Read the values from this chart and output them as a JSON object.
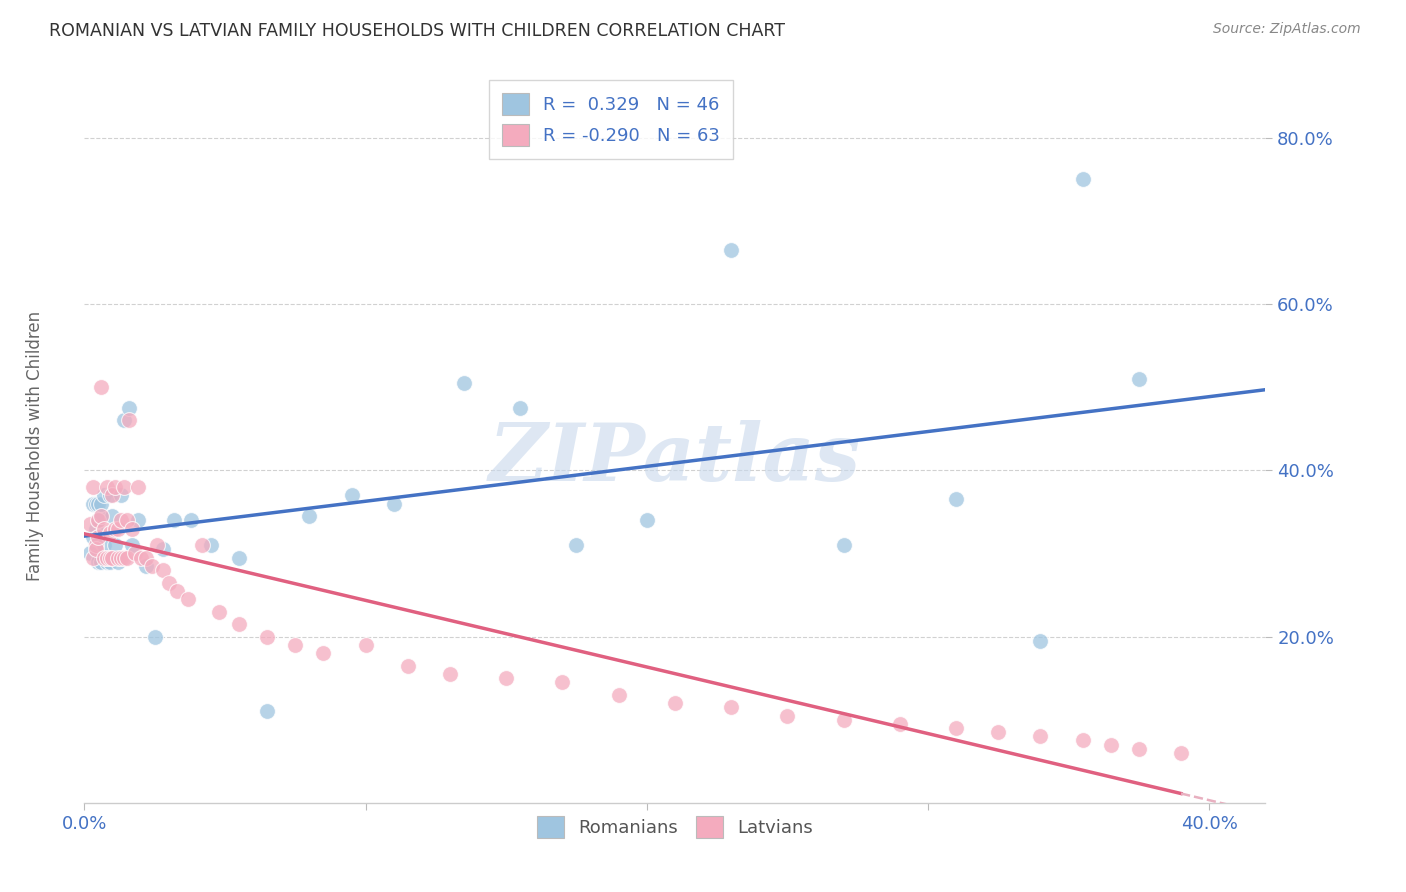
{
  "title": "ROMANIAN VS LATVIAN FAMILY HOUSEHOLDS WITH CHILDREN CORRELATION CHART",
  "source": "Source: ZipAtlas.com",
  "ylabel": "Family Households with Children",
  "xlim": [
    0.0,
    0.42
  ],
  "ylim": [
    0.0,
    0.88
  ],
  "yticks": [
    0.2,
    0.4,
    0.6,
    0.8
  ],
  "ytick_labels": [
    "20.0%",
    "40.0%",
    "60.0%",
    "80.0%"
  ],
  "xticks": [
    0.0,
    0.1,
    0.2,
    0.3,
    0.4
  ],
  "xtick_labels_show": [
    "0.0%",
    "",
    "",
    "",
    "40.0%"
  ],
  "romanian_R": 0.329,
  "romanian_N": 46,
  "latvian_R": -0.29,
  "latvian_N": 63,
  "romanian_color": "#9FC5E0",
  "latvian_color": "#F4ABBE",
  "trendline_romanian_color": "#4472C4",
  "trendline_latvian_solid_color": "#E06080",
  "trendline_latvian_dashed_color": "#E8B0C0",
  "watermark": "ZIPatlas",
  "watermark_color": "#C8D8EC",
  "background_color": "#FFFFFF",
  "romanian_x": [
    0.002,
    0.003,
    0.003,
    0.004,
    0.004,
    0.005,
    0.005,
    0.005,
    0.006,
    0.006,
    0.006,
    0.007,
    0.007,
    0.008,
    0.009,
    0.009,
    0.01,
    0.01,
    0.011,
    0.012,
    0.013,
    0.014,
    0.016,
    0.017,
    0.019,
    0.022,
    0.025,
    0.028,
    0.032,
    0.038,
    0.045,
    0.055,
    0.065,
    0.08,
    0.095,
    0.11,
    0.135,
    0.155,
    0.175,
    0.2,
    0.23,
    0.27,
    0.31,
    0.34,
    0.355,
    0.375
  ],
  "romanian_y": [
    0.3,
    0.32,
    0.36,
    0.33,
    0.36,
    0.34,
    0.36,
    0.29,
    0.345,
    0.29,
    0.36,
    0.37,
    0.31,
    0.29,
    0.37,
    0.29,
    0.295,
    0.345,
    0.31,
    0.29,
    0.37,
    0.46,
    0.475,
    0.31,
    0.34,
    0.285,
    0.2,
    0.305,
    0.34,
    0.34,
    0.31,
    0.295,
    0.11,
    0.345,
    0.37,
    0.36,
    0.505,
    0.475,
    0.31,
    0.34,
    0.665,
    0.31,
    0.365,
    0.195,
    0.75,
    0.51
  ],
  "latvian_x": [
    0.002,
    0.003,
    0.003,
    0.004,
    0.004,
    0.005,
    0.005,
    0.006,
    0.006,
    0.007,
    0.007,
    0.008,
    0.008,
    0.009,
    0.009,
    0.01,
    0.01,
    0.011,
    0.011,
    0.012,
    0.012,
    0.013,
    0.013,
    0.014,
    0.014,
    0.015,
    0.015,
    0.016,
    0.017,
    0.018,
    0.019,
    0.02,
    0.022,
    0.024,
    0.026,
    0.028,
    0.03,
    0.033,
    0.037,
    0.042,
    0.048,
    0.055,
    0.065,
    0.075,
    0.085,
    0.1,
    0.115,
    0.13,
    0.15,
    0.17,
    0.19,
    0.21,
    0.23,
    0.25,
    0.27,
    0.29,
    0.31,
    0.325,
    0.34,
    0.355,
    0.365,
    0.375,
    0.39
  ],
  "latvian_y": [
    0.335,
    0.295,
    0.38,
    0.31,
    0.305,
    0.34,
    0.32,
    0.5,
    0.345,
    0.33,
    0.295,
    0.38,
    0.295,
    0.325,
    0.295,
    0.37,
    0.295,
    0.33,
    0.38,
    0.33,
    0.295,
    0.34,
    0.295,
    0.295,
    0.38,
    0.295,
    0.34,
    0.46,
    0.33,
    0.3,
    0.38,
    0.295,
    0.295,
    0.285,
    0.31,
    0.28,
    0.265,
    0.255,
    0.245,
    0.31,
    0.23,
    0.215,
    0.2,
    0.19,
    0.18,
    0.19,
    0.165,
    0.155,
    0.15,
    0.145,
    0.13,
    0.12,
    0.115,
    0.105,
    0.1,
    0.095,
    0.09,
    0.085,
    0.08,
    0.075,
    0.07,
    0.065,
    0.06
  ]
}
